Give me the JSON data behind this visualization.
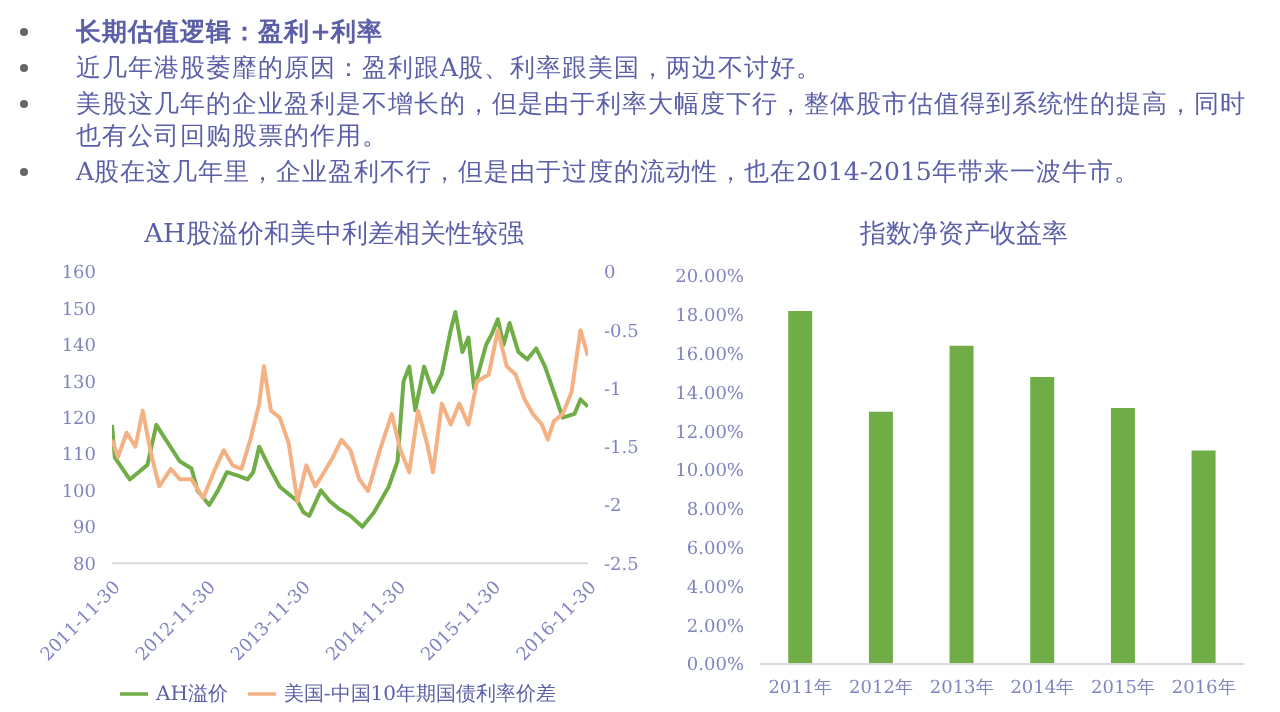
{
  "chart_data": [
    {
      "type": "other",
      "title": "长期估值逻辑：盈利+利率",
      "annotations": [
        "近几年港股萎靡的原因：盈利跟A股、利率跟美国，两边不讨好。",
        "美股这几年的企业盈利是不增长的，但是由于利率大幅度下行，整体股市估值得到系统性的提高，同时也有公司回购股票的作用。",
        "A股在这几年里，企业盈利不行，但是由于过度的流动性，也在2014-2015年带来一波牛市。"
      ]
    },
    {
      "type": "line",
      "title": "AH股溢价和美中利差相关性较强",
      "xlim": [
        "2011-11-30",
        "2016-11-30"
      ],
      "xticks": [
        "2011-11-30",
        "2012-11-30",
        "2013-11-30",
        "2014-11-30",
        "2015-11-30",
        "2016-11-30"
      ],
      "ylim": [
        80,
        160
      ],
      "yticks": [
        80,
        90,
        100,
        110,
        120,
        130,
        140,
        150,
        160
      ],
      "y2lim": [
        -2.5,
        0
      ],
      "y2ticks": [
        -2.5,
        -2,
        -1.5,
        -1,
        -0.5,
        0
      ],
      "legend": "bottom",
      "marker": "none",
      "series": [
        {
          "name": "AH溢价",
          "color": "#70ad47",
          "x": [
            "2011-11-30",
            "2011-12-11",
            "2012-02-06",
            "2012-03-11",
            "2012-04-14",
            "2012-05-18",
            "2012-07-02",
            "2012-08-16",
            "2012-09-30",
            "2012-10-23",
            "2012-12-07",
            "2013-01-10",
            "2013-02-13",
            "2013-03-30",
            "2013-05-03",
            "2013-05-25",
            "2013-06-17",
            "2013-07-21",
            "2013-09-04",
            "2013-11-11",
            "2013-12-04",
            "2013-12-26",
            "2014-02-09",
            "2014-03-15",
            "2014-04-18",
            "2014-06-02",
            "2014-07-18",
            "2014-09-01",
            "2014-10-27",
            "2014-11-30",
            "2014-12-23",
            "2015-01-14",
            "2015-02-06",
            "2015-03-12",
            "2015-04-15",
            "2015-05-19",
            "2015-06-22",
            "2015-07-10",
            "2015-08-06",
            "2015-08-29",
            "2015-09-20",
            "2015-10-13",
            "2015-11-05",
            "2015-11-27",
            "2015-12-20",
            "2016-01-11",
            "2016-02-03",
            "2016-03-08",
            "2016-04-11",
            "2016-05-15",
            "2016-06-18",
            "2016-07-22",
            "2016-08-25",
            "2016-10-09",
            "2016-11-01",
            "2016-11-30"
          ],
          "values": [
            118,
            109,
            103,
            105,
            107,
            118,
            113,
            108,
            106,
            100,
            96,
            100,
            105,
            104,
            103,
            105,
            112,
            107,
            101,
            97,
            94,
            93,
            100,
            97,
            95,
            93,
            90,
            94,
            101,
            108,
            130,
            134,
            122,
            134,
            127,
            132,
            144,
            149,
            138,
            142,
            128,
            134,
            140,
            143,
            147,
            140,
            146,
            138,
            136,
            139,
            134,
            127,
            120,
            121,
            125,
            123
          ]
        },
        {
          "name": "美国-中国10年期国债利率价差",
          "color": "#f4b183",
          "axis": "y2",
          "x": [
            "2011-11-30",
            "2011-12-23",
            "2012-01-25",
            "2012-02-28",
            "2012-03-27",
            "2012-04-25",
            "2012-05-29",
            "2012-07-13",
            "2012-08-16",
            "2012-09-30",
            "2012-11-14",
            "2012-12-30",
            "2013-02-01",
            "2013-03-07",
            "2013-04-10",
            "2013-05-14",
            "2013-06-17",
            "2013-07-05",
            "2013-08-01",
            "2013-09-04",
            "2013-10-08",
            "2013-11-11",
            "2013-12-15",
            "2014-01-18",
            "2014-02-21",
            "2014-03-27",
            "2014-04-29",
            "2014-06-02",
            "2014-07-06",
            "2014-08-09",
            "2014-09-23",
            "2014-11-08",
            "2014-12-11",
            "2015-01-14",
            "2015-02-17",
            "2015-03-23",
            "2015-04-15",
            "2015-05-19",
            "2015-06-22",
            "2015-07-25",
            "2015-08-29",
            "2015-10-01",
            "2015-11-15",
            "2015-12-20",
            "2016-01-23",
            "2016-02-26",
            "2016-03-31",
            "2016-05-03",
            "2016-06-06",
            "2016-06-29",
            "2016-07-22",
            "2016-08-25",
            "2016-09-28",
            "2016-11-01",
            "2016-11-30"
          ],
          "values": [
            -1.44,
            -1.59,
            -1.38,
            -1.5,
            -1.19,
            -1.53,
            -1.84,
            -1.69,
            -1.78,
            -1.78,
            -1.94,
            -1.69,
            -1.53,
            -1.66,
            -1.69,
            -1.44,
            -1.13,
            -0.81,
            -1.19,
            -1.25,
            -1.47,
            -1.97,
            -1.66,
            -1.84,
            -1.72,
            -1.59,
            -1.44,
            -1.53,
            -1.78,
            -1.88,
            -1.53,
            -1.22,
            -1.53,
            -1.72,
            -1.19,
            -1.47,
            -1.72,
            -1.13,
            -1.31,
            -1.13,
            -1.31,
            -0.94,
            -0.88,
            -0.5,
            -0.81,
            -0.88,
            -1.09,
            -1.22,
            -1.31,
            -1.44,
            -1.28,
            -1.22,
            -1.03,
            -0.5,
            -0.72
          ]
        }
      ]
    },
    {
      "type": "bar",
      "title": "指数净资产收益率",
      "categories": [
        "2011年",
        "2012年",
        "2013年",
        "2014年",
        "2015年",
        "2016年"
      ],
      "values": [
        18.2,
        13.0,
        16.4,
        14.8,
        13.2,
        11.0
      ],
      "color": "#70ad47",
      "ylim": [
        0,
        20
      ],
      "yticks": [
        {
          "value": 0,
          "label": "0.00%"
        },
        {
          "value": 2,
          "label": "2.00%"
        },
        {
          "value": 4,
          "label": "4.00%"
        },
        {
          "value": 6,
          "label": "6.00%"
        },
        {
          "value": 8,
          "label": "8.00%"
        },
        {
          "value": 10,
          "label": "10.00%"
        },
        {
          "value": 12,
          "label": "12.00%"
        },
        {
          "value": 14,
          "label": "14.00%"
        },
        {
          "value": 16,
          "label": "16.00%"
        },
        {
          "value": 18,
          "label": "18.00%"
        },
        {
          "value": 20,
          "label": "20.00%"
        }
      ]
    }
  ]
}
